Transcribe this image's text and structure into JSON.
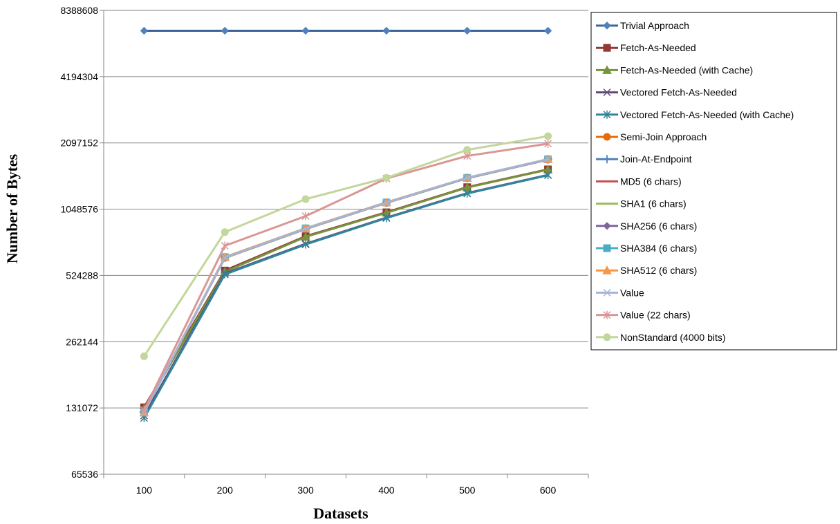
{
  "chart_data": {
    "type": "line",
    "title": "",
    "xlabel": "Datasets",
    "ylabel": "Number of Bytes",
    "yscale": "log2",
    "ylim": [
      65536,
      8388608
    ],
    "yticks": [
      "65536",
      "131072",
      "262144",
      "524288",
      "1048576",
      "2097152",
      "4194304",
      "8388608"
    ],
    "categories": [
      "100",
      "200",
      "300",
      "400",
      "500",
      "600"
    ],
    "grid": "horizontal",
    "legend_position": "right",
    "series": [
      {
        "name": "Trivial Approach",
        "color": "#4F81BD",
        "lineColor": "#3B6496",
        "marker": "diamond",
        "values": [
          6780000,
          6780000,
          6780000,
          6780000,
          6780000,
          6780000
        ]
      },
      {
        "name": "Fetch-As-Needed",
        "color": "#953735",
        "lineColor": "#953735",
        "marker": "square",
        "values": [
          132000,
          552000,
          790000,
          1015000,
          1320000,
          1590000
        ]
      },
      {
        "name": "Fetch-As-Needed (with Cache)",
        "color": "#77933C",
        "lineColor": "#77933C",
        "marker": "triangle",
        "values": [
          130000,
          545000,
          785000,
          1010000,
          1315000,
          1585000
        ]
      },
      {
        "name": "Vectored Fetch-As-Needed",
        "color": "#604A7B",
        "lineColor": "#604A7B",
        "marker": "x",
        "values": [
          121000,
          535000,
          730000,
          960000,
          1240000,
          1500000
        ]
      },
      {
        "name": "Vectored Fetch-As-Needed (with Cache)",
        "color": "#31859C",
        "lineColor": "#31859C",
        "marker": "asterisk",
        "values": [
          118000,
          530000,
          725000,
          955000,
          1235000,
          1495000
        ]
      },
      {
        "name": "Semi-Join Approach",
        "color": "#E46C0A",
        "lineColor": "#E46C0A",
        "marker": "circle",
        "values": [
          125000,
          630000,
          855000,
          1120000,
          1450000,
          1760000
        ]
      },
      {
        "name": "Join-At-Endpoint",
        "color": "#4F81BD",
        "lineColor": "#4F81BD",
        "marker": "plus",
        "values": [
          125000,
          632000,
          855000,
          1122000,
          1455000,
          1765000
        ]
      },
      {
        "name": "MD5 (6 chars)",
        "color": "#C0504D",
        "lineColor": "#C0504D",
        "marker": "none",
        "values": [
          125000,
          630000,
          852000,
          1120000,
          1450000,
          1760000
        ]
      },
      {
        "name": "SHA1 (6 chars)",
        "color": "#9BBB59",
        "lineColor": "#9BBB59",
        "marker": "none",
        "values": [
          125000,
          630000,
          852000,
          1120000,
          1450000,
          1760000
        ]
      },
      {
        "name": "SHA256 (6 chars)",
        "color": "#8064A2",
        "lineColor": "#8064A2",
        "marker": "diamond",
        "values": [
          125000,
          632000,
          855000,
          1122000,
          1452000,
          1762000
        ]
      },
      {
        "name": "SHA384 (6 chars)",
        "color": "#4BACC6",
        "lineColor": "#4BACC6",
        "marker": "square",
        "values": [
          125000,
          635000,
          858000,
          1125000,
          1455000,
          1768000
        ]
      },
      {
        "name": "SHA512 (6 chars)",
        "color": "#F79646",
        "lineColor": "#F79646",
        "marker": "triangle",
        "values": [
          125000,
          635000,
          858000,
          1125000,
          1455000,
          1768000
        ]
      },
      {
        "name": "Value",
        "color": "#A5B4D6",
        "lineColor": "#A5B4D6",
        "marker": "x",
        "values": [
          125000,
          632000,
          855000,
          1122000,
          1455000,
          1765000
        ]
      },
      {
        "name": "Value (22 chars)",
        "color": "#D99694",
        "lineColor": "#D99694",
        "marker": "asterisk",
        "values": [
          128000,
          715000,
          975000,
          1445000,
          1830000,
          2080000
        ]
      },
      {
        "name": "NonStandard (4000 bits)",
        "color": "#C3D69B",
        "lineColor": "#C3D69B",
        "marker": "circle",
        "values": [
          225000,
          825000,
          1165000,
          1455000,
          1950000,
          2250000
        ]
      }
    ]
  }
}
